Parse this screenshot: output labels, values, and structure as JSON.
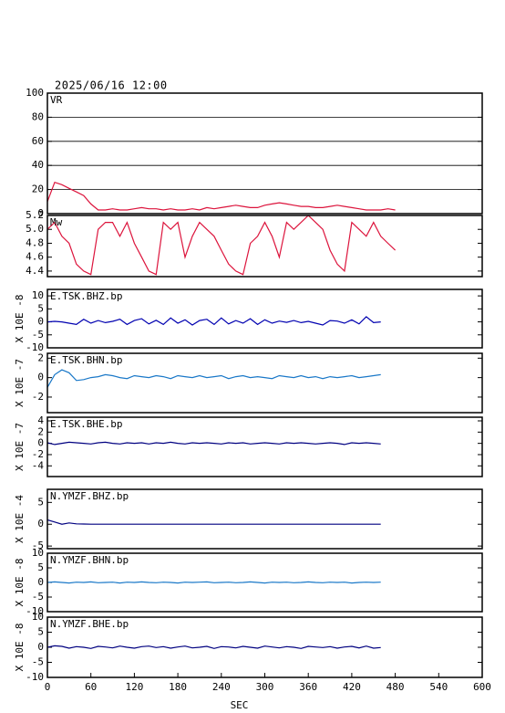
{
  "chart_data": [
    {
      "type": "line",
      "title": "2025/06/16 12:00",
      "label": "VR",
      "xlim": [
        0,
        600
      ],
      "ylim": [
        0,
        100
      ],
      "yticks": [
        0,
        20,
        40,
        60,
        80,
        100
      ],
      "grid": true,
      "x": [
        0,
        10,
        20,
        30,
        40,
        50,
        60,
        70,
        80,
        90,
        100,
        110,
        120,
        130,
        140,
        150,
        160,
        170,
        180,
        190,
        200,
        210,
        220,
        230,
        240,
        250,
        260,
        270,
        280,
        290,
        300,
        310,
        320,
        330,
        340,
        350,
        360,
        370,
        380,
        390,
        400,
        410,
        420,
        430,
        440,
        450,
        460,
        470,
        480
      ],
      "series": [
        {
          "color": "#dc143c",
          "values": [
            10,
            26,
            24,
            21,
            18,
            15,
            8,
            3,
            3,
            4,
            3,
            3,
            4,
            5,
            4,
            4,
            3,
            4,
            3,
            3,
            4,
            3,
            5,
            4,
            5,
            6,
            7,
            6,
            5,
            5,
            7,
            8,
            9,
            8,
            7,
            6,
            6,
            5,
            5,
            6,
            7,
            6,
            5,
            4,
            3,
            3,
            3,
            4,
            3
          ]
        }
      ]
    },
    {
      "type": "line",
      "label": "Mw",
      "xlim": [
        0,
        600
      ],
      "ylim": [
        4.32,
        5.2
      ],
      "yticks": [
        4.4,
        4.6,
        4.8,
        {
          "value": 5,
          "label": "5.0"
        },
        5.2
      ],
      "x": [
        0,
        10,
        20,
        30,
        40,
        50,
        60,
        70,
        80,
        90,
        100,
        110,
        120,
        130,
        140,
        150,
        160,
        170,
        180,
        190,
        200,
        210,
        220,
        230,
        240,
        250,
        260,
        270,
        280,
        290,
        300,
        310,
        320,
        330,
        340,
        350,
        360,
        370,
        380,
        390,
        400,
        410,
        420,
        430,
        440,
        450,
        460,
        470,
        480
      ],
      "series": [
        {
          "color": "#dc143c",
          "values": [
            5.0,
            5.1,
            4.9,
            4.8,
            4.5,
            4.4,
            4.35,
            5.0,
            5.1,
            5.1,
            4.9,
            5.1,
            4.8,
            4.6,
            4.4,
            4.35,
            5.1,
            5.0,
            5.1,
            4.6,
            4.9,
            5.1,
            5.0,
            4.9,
            4.7,
            4.5,
            4.4,
            4.35,
            4.8,
            4.9,
            5.1,
            4.9,
            4.6,
            5.1,
            5.0,
            5.1,
            5.2,
            5.1,
            5.0,
            4.7,
            4.5,
            4.4,
            5.1,
            5.0,
            4.9,
            5.1,
            4.9,
            4.8,
            4.7
          ]
        }
      ]
    },
    {
      "type": "line",
      "label": "E.TSK.BHZ.bp",
      "ylabel": "X 10E -8",
      "xlim": [
        0,
        600
      ],
      "ylim": [
        -10,
        12.5
      ],
      "yticks": [
        -10,
        -5,
        0,
        5,
        10
      ],
      "x": [
        0,
        10,
        20,
        30,
        40,
        50,
        60,
        70,
        80,
        90,
        100,
        110,
        120,
        130,
        140,
        150,
        160,
        170,
        180,
        190,
        200,
        210,
        220,
        230,
        240,
        250,
        260,
        270,
        280,
        290,
        300,
        310,
        320,
        330,
        340,
        350,
        360,
        370,
        380,
        390,
        400,
        410,
        420,
        430,
        440,
        450,
        460
      ],
      "series": [
        {
          "color": "#0000b0",
          "values": [
            0,
            0.2,
            0,
            -0.5,
            -1,
            1,
            -0.5,
            0.5,
            -0.3,
            0.2,
            1,
            -1,
            0.5,
            1.2,
            -0.8,
            0.6,
            -1,
            1.5,
            -0.5,
            0.8,
            -1.2,
            0.5,
            1,
            -1,
            1.5,
            -0.8,
            0.5,
            -0.5,
            1.2,
            -1,
            0.8,
            -0.5,
            0.3,
            -0.2,
            0.5,
            -0.3,
            0.2,
            -0.5,
            -1.2,
            0.5,
            0.3,
            -0.5,
            0.8,
            -0.8,
            2,
            -0.3,
            0
          ]
        }
      ]
    },
    {
      "type": "line",
      "label": "E.TSK.BHN.bp",
      "ylabel": "X 10E -7",
      "xlim": [
        0,
        600
      ],
      "ylim": [
        -3.6,
        2.5
      ],
      "yticks": [
        -2,
        0,
        2
      ],
      "x": [
        0,
        10,
        20,
        30,
        40,
        50,
        60,
        70,
        80,
        90,
        100,
        110,
        120,
        130,
        140,
        150,
        160,
        170,
        180,
        190,
        200,
        210,
        220,
        230,
        240,
        250,
        260,
        270,
        280,
        290,
        300,
        310,
        320,
        330,
        340,
        350,
        360,
        370,
        380,
        390,
        400,
        410,
        420,
        430,
        440,
        450,
        460
      ],
      "series": [
        {
          "color": "#1a78c8",
          "values": [
            -1,
            0.3,
            0.8,
            0.5,
            -0.3,
            -0.2,
            0,
            0.1,
            0.3,
            0.2,
            0,
            -0.1,
            0.2,
            0.1,
            0,
            0.2,
            0.1,
            -0.1,
            0.2,
            0.1,
            0,
            0.2,
            0,
            0.1,
            0.2,
            -0.1,
            0.1,
            0.2,
            0,
            0.1,
            0,
            -0.1,
            0.2,
            0.1,
            0,
            0.2,
            0,
            0.1,
            -0.1,
            0.1,
            0,
            0.1,
            0.2,
            0,
            0.1,
            0.2,
            0.3
          ]
        }
      ]
    },
    {
      "type": "line",
      "label": "E.TSK.BHE.bp",
      "ylabel": "X 10E -7",
      "xlim": [
        0,
        600
      ],
      "ylim": [
        -5.9,
        4.65
      ],
      "yticks": [
        -4,
        -2,
        0,
        2,
        4
      ],
      "x": [
        0,
        10,
        20,
        30,
        40,
        50,
        60,
        70,
        80,
        90,
        100,
        110,
        120,
        130,
        140,
        150,
        160,
        170,
        180,
        190,
        200,
        210,
        220,
        230,
        240,
        250,
        260,
        270,
        280,
        290,
        300,
        310,
        320,
        330,
        340,
        350,
        360,
        370,
        380,
        390,
        400,
        410,
        420,
        430,
        440,
        450,
        460
      ],
      "series": [
        {
          "color": "#000080",
          "values": [
            0.1,
            -0.2,
            0,
            0.2,
            0.1,
            0,
            -0.1,
            0.1,
            0.2,
            0,
            -0.1,
            0.1,
            0,
            0.1,
            -0.1,
            0.1,
            0,
            0.2,
            0,
            -0.1,
            0.1,
            0,
            0.1,
            0,
            -0.1,
            0.1,
            0,
            0.1,
            -0.1,
            0,
            0.1,
            0,
            -0.1,
            0.1,
            0,
            0.1,
            0,
            -0.1,
            0,
            0.1,
            0,
            -0.2,
            0.1,
            0,
            0.1,
            0,
            -0.1
          ]
        }
      ]
    },
    {
      "type": "line",
      "label": "N.YMZF.BHZ.bp",
      "ylabel": "X 10E -4",
      "xlim": [
        0,
        600
      ],
      "ylim": [
        -5.6,
        8
      ],
      "yticks": [
        -5,
        0,
        5
      ],
      "x": [
        0,
        10,
        20,
        30,
        40,
        50,
        60,
        70,
        80,
        90,
        100,
        110,
        120,
        130,
        140,
        150,
        160,
        170,
        180,
        190,
        200,
        210,
        220,
        230,
        240,
        250,
        260,
        270,
        280,
        290,
        300,
        310,
        320,
        330,
        340,
        350,
        360,
        370,
        380,
        390,
        400,
        410,
        420,
        430,
        440,
        450,
        460
      ],
      "series": [
        {
          "color": "#000080",
          "values": [
            1,
            0.5,
            0,
            0.3,
            0.1,
            0.05,
            0,
            0,
            0,
            0,
            0,
            0,
            0,
            0,
            0,
            0,
            0,
            0,
            0,
            0,
            0,
            0,
            0,
            0,
            0,
            0,
            0,
            0,
            0,
            0,
            0,
            0,
            0,
            0,
            0,
            0,
            0,
            0,
            0,
            0,
            0,
            0,
            0,
            0,
            0,
            0,
            0
          ]
        }
      ]
    },
    {
      "type": "line",
      "label": "N.YMZF.BHN.bp",
      "ylabel": "X 10E -8",
      "xlim": [
        0,
        600
      ],
      "ylim": [
        -10,
        10
      ],
      "yticks": [
        -10,
        -5,
        0,
        5,
        10
      ],
      "x": [
        0,
        10,
        20,
        30,
        40,
        50,
        60,
        70,
        80,
        90,
        100,
        110,
        120,
        130,
        140,
        150,
        160,
        170,
        180,
        190,
        200,
        210,
        220,
        230,
        240,
        250,
        260,
        270,
        280,
        290,
        300,
        310,
        320,
        330,
        340,
        350,
        360,
        370,
        380,
        390,
        400,
        410,
        420,
        430,
        440,
        450,
        460
      ],
      "series": [
        {
          "color": "#1a78c8",
          "values": [
            0,
            0.2,
            0,
            -0.2,
            0.1,
            0,
            0.2,
            -0.1,
            0,
            0.1,
            -0.2,
            0.1,
            0,
            0.2,
            0,
            -0.1,
            0.1,
            0,
            -0.2,
            0.1,
            0,
            0.1,
            0.2,
            -0.1,
            0,
            0.1,
            -0.1,
            0,
            0.2,
            0,
            -0.2,
            0.1,
            0,
            0.1,
            -0.1,
            0,
            0.2,
            0,
            -0.1,
            0.1,
            0,
            0.1,
            -0.2,
            0,
            0.1,
            0,
            0.1
          ]
        }
      ]
    },
    {
      "type": "line",
      "label": "N.YMZF.BHE.bp",
      "ylabel": "X 10E -8",
      "xlabel": "SEC",
      "xlim": [
        0,
        600
      ],
      "ylim": [
        -10,
        10
      ],
      "yticks": [
        -10,
        -5,
        0,
        5,
        10
      ],
      "xticks": [
        0,
        60,
        120,
        180,
        240,
        300,
        360,
        420,
        480,
        540,
        600
      ],
      "x": [
        0,
        10,
        20,
        30,
        40,
        50,
        60,
        70,
        80,
        90,
        100,
        110,
        120,
        130,
        140,
        150,
        160,
        170,
        180,
        190,
        200,
        210,
        220,
        230,
        240,
        250,
        260,
        270,
        280,
        290,
        300,
        310,
        320,
        330,
        340,
        350,
        360,
        370,
        380,
        390,
        400,
        410,
        420,
        430,
        440,
        450,
        460
      ],
      "series": [
        {
          "color": "#000080",
          "values": [
            0,
            0.5,
            0.3,
            -0.3,
            0.2,
            0,
            -0.4,
            0.3,
            0.1,
            -0.2,
            0.4,
            0,
            -0.3,
            0.2,
            0.4,
            -0.1,
            0.2,
            -0.3,
            0.1,
            0.4,
            -0.2,
            0,
            0.3,
            -0.4,
            0.2,
            0.1,
            -0.2,
            0.3,
            0,
            -0.3,
            0.4,
            0.1,
            -0.2,
            0.2,
            0,
            -0.4,
            0.3,
            0.1,
            -0.1,
            0.2,
            -0.3,
            0.1,
            0.3,
            -0.2,
            0.4,
            -0.3,
            -0.1
          ]
        }
      ]
    }
  ]
}
